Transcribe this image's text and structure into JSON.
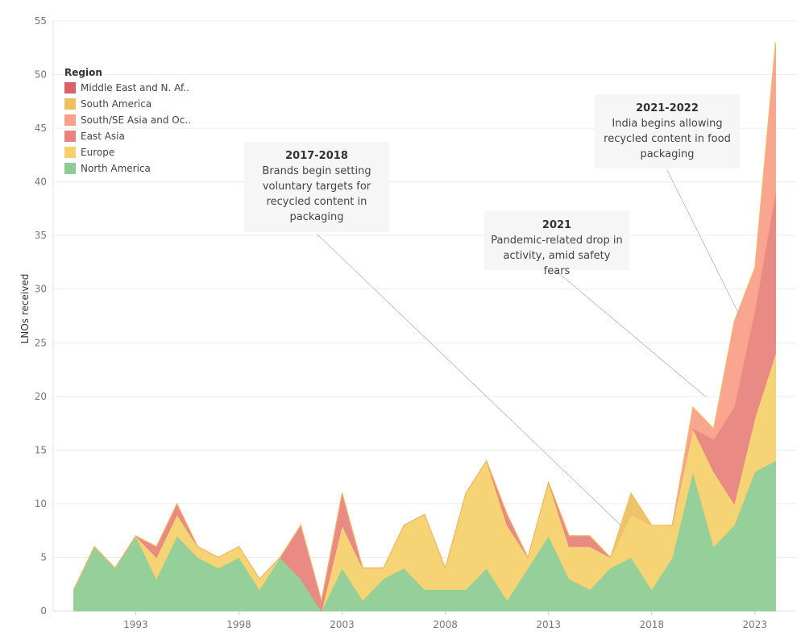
{
  "chart_data": {
    "type": "area",
    "title": "",
    "xlabel": "",
    "ylabel": "LNOs received",
    "x": [
      1990,
      1991,
      1992,
      1993,
      1994,
      1995,
      1996,
      1997,
      1998,
      1999,
      2000,
      2001,
      2002,
      2003,
      2004,
      2005,
      2006,
      2007,
      2008,
      2009,
      2010,
      2011,
      2012,
      2013,
      2014,
      2015,
      2016,
      2017,
      2018,
      2019,
      2020,
      2021,
      2022,
      2023,
      2024
    ],
    "xlim": [
      1989,
      2025
    ],
    "ylim": [
      0,
      55
    ],
    "xticks": [
      "1993",
      "1998",
      "2003",
      "2008",
      "2013",
      "2018",
      "2023"
    ],
    "yticks": [
      "0",
      "5",
      "10",
      "15",
      "20",
      "25",
      "30",
      "35",
      "40",
      "45",
      "50",
      "55"
    ],
    "grid": true,
    "legend_position": "top-left",
    "legend_title": "Region",
    "series": [
      {
        "name": "North America",
        "color": "#8fcc95",
        "values": [
          2,
          6,
          4,
          7,
          3,
          7,
          5,
          4,
          5,
          2,
          5,
          3,
          0,
          4,
          1,
          3,
          4,
          2,
          2,
          2,
          4,
          1,
          4,
          7,
          3,
          2,
          4,
          5,
          2,
          5,
          13,
          6,
          8,
          13,
          14
        ]
      },
      {
        "name": "Europe",
        "color": "#f5d26e",
        "values": [
          0,
          0,
          0,
          0,
          2,
          2,
          1,
          1,
          1,
          1,
          0,
          0,
          0,
          4,
          3,
          1,
          4,
          7,
          2,
          9,
          10,
          7,
          1,
          5,
          3,
          4,
          1,
          4,
          6,
          3,
          4,
          7,
          2,
          5,
          10
        ]
      },
      {
        "name": "East Asia",
        "color": "#e8847e",
        "values": [
          0,
          0,
          0,
          0,
          1,
          1,
          0,
          0,
          0,
          0,
          0,
          5,
          1,
          3,
          0,
          0,
          0,
          0,
          0,
          0,
          0,
          1,
          0,
          0,
          1,
          1,
          0,
          0,
          0,
          0,
          0,
          3,
          9,
          10,
          15
        ]
      },
      {
        "name": "South/SE Asia and Oc..",
        "color": "#f9a08a",
        "values": [
          0,
          0,
          0,
          0,
          0,
          0,
          0,
          0,
          0,
          0,
          0,
          0,
          0,
          0,
          0,
          0,
          0,
          0,
          0,
          0,
          0,
          0,
          0,
          0,
          0,
          0,
          0,
          0,
          0,
          0,
          2,
          1,
          8,
          4,
          14
        ]
      },
      {
        "name": "South America",
        "color": "#eec064",
        "values": [
          0,
          0,
          0,
          0,
          0,
          0,
          0,
          0,
          0,
          0,
          0,
          0,
          0,
          0,
          0,
          0,
          0,
          0,
          0,
          0,
          0,
          0,
          0,
          0,
          0,
          0,
          0,
          2,
          0,
          0,
          0,
          0,
          0,
          0,
          0
        ]
      },
      {
        "name": "Middle East and N. Af..",
        "color": "#d9626a",
        "values": [
          0,
          0,
          0,
          0,
          0,
          0,
          0,
          0,
          0,
          0,
          0,
          0,
          0,
          0,
          0,
          0,
          0,
          0,
          0,
          0,
          0,
          0,
          0,
          0,
          0,
          0,
          0,
          0,
          0,
          0,
          0,
          0,
          0,
          0,
          0
        ]
      }
    ],
    "annotations": [
      {
        "title": "2017-2018",
        "text": "Brands begin setting voluntary targets for recycled content in packaging",
        "target": [
          2016.5,
          8
        ]
      },
      {
        "title": "2021",
        "text": "Pandemic-related drop in activity, amid safety fears",
        "target": [
          2020.6,
          20
        ]
      },
      {
        "title": "2021-2022",
        "text": "India begins allowing recycled content in food packaging",
        "target": [
          2022.4,
          27
        ]
      }
    ]
  },
  "legend": {
    "title": "Region",
    "items": [
      {
        "label": "Middle East and N. Af..",
        "color": "#d9626a"
      },
      {
        "label": "South America",
        "color": "#eec064"
      },
      {
        "label": "South/SE Asia and Oc..",
        "color": "#f9a08a"
      },
      {
        "label": "East Asia",
        "color": "#e8847e"
      },
      {
        "label": "Europe",
        "color": "#f5d26e"
      },
      {
        "label": "North America",
        "color": "#8fcc95"
      }
    ]
  },
  "annotations_text": [
    {
      "title": "2017-2018",
      "lines": [
        "Brands begin setting",
        "voluntary targets for",
        "recycled content in",
        "packaging"
      ]
    },
    {
      "title": "2021",
      "lines": [
        "Pandemic-related drop in",
        "activity, amid safety fears"
      ]
    },
    {
      "title": "2021-2022",
      "lines": [
        "India begins allowing",
        "recycled content in food",
        "packaging"
      ]
    }
  ]
}
